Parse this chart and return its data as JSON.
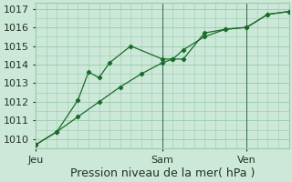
{
  "title": "",
  "xlabel": "Pression niveau de la mer( hPa )",
  "ylim": [
    1009.5,
    1017.3
  ],
  "yticks": [
    1010,
    1011,
    1012,
    1013,
    1014,
    1015,
    1016,
    1017
  ],
  "background_color": "#cce8d8",
  "grid_color": "#99ccaa",
  "line_color": "#1a6b2a",
  "marker_color": "#1a6b2a",
  "day_labels": [
    "Jeu",
    "Sam",
    "Ven"
  ],
  "day_positions": [
    0,
    12,
    20
  ],
  "xlim": [
    0,
    24
  ],
  "line1_x": [
    0,
    2,
    4,
    5,
    6,
    7,
    9,
    12,
    13,
    14,
    16,
    18,
    20,
    22,
    24
  ],
  "line1_y": [
    1009.7,
    1010.4,
    1012.1,
    1013.6,
    1013.3,
    1014.1,
    1015.0,
    1014.3,
    1014.3,
    1014.3,
    1015.7,
    1015.9,
    1016.0,
    1016.7,
    1016.85
  ],
  "line2_x": [
    0,
    2,
    4,
    6,
    8,
    10,
    12,
    13,
    14,
    16,
    18,
    20,
    22,
    24
  ],
  "line2_y": [
    1009.7,
    1010.4,
    1011.2,
    1012.0,
    1012.8,
    1013.5,
    1014.1,
    1014.3,
    1014.8,
    1015.5,
    1015.9,
    1016.0,
    1016.7,
    1016.85
  ],
  "vline_positions": [
    12,
    20
  ],
  "vline_color": "#336644",
  "font_color": "#223322",
  "font_size": 8,
  "xlabel_fontsize": 9
}
